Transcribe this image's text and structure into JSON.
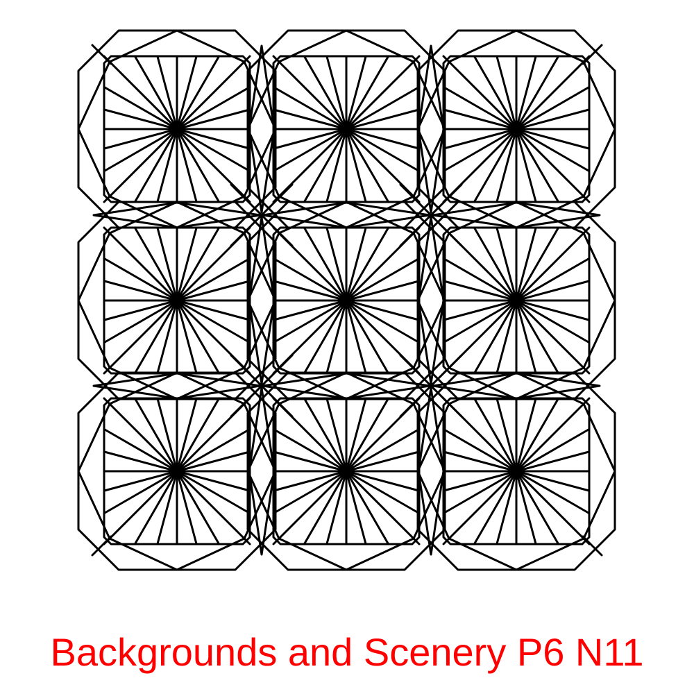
{
  "caption": {
    "text": "Backgrounds and Scenery P6 N11",
    "color": "#ff0000"
  },
  "pattern": {
    "rows": 3,
    "columns": 3,
    "stroke_color": "#000000",
    "background_color": "#ffffff"
  }
}
